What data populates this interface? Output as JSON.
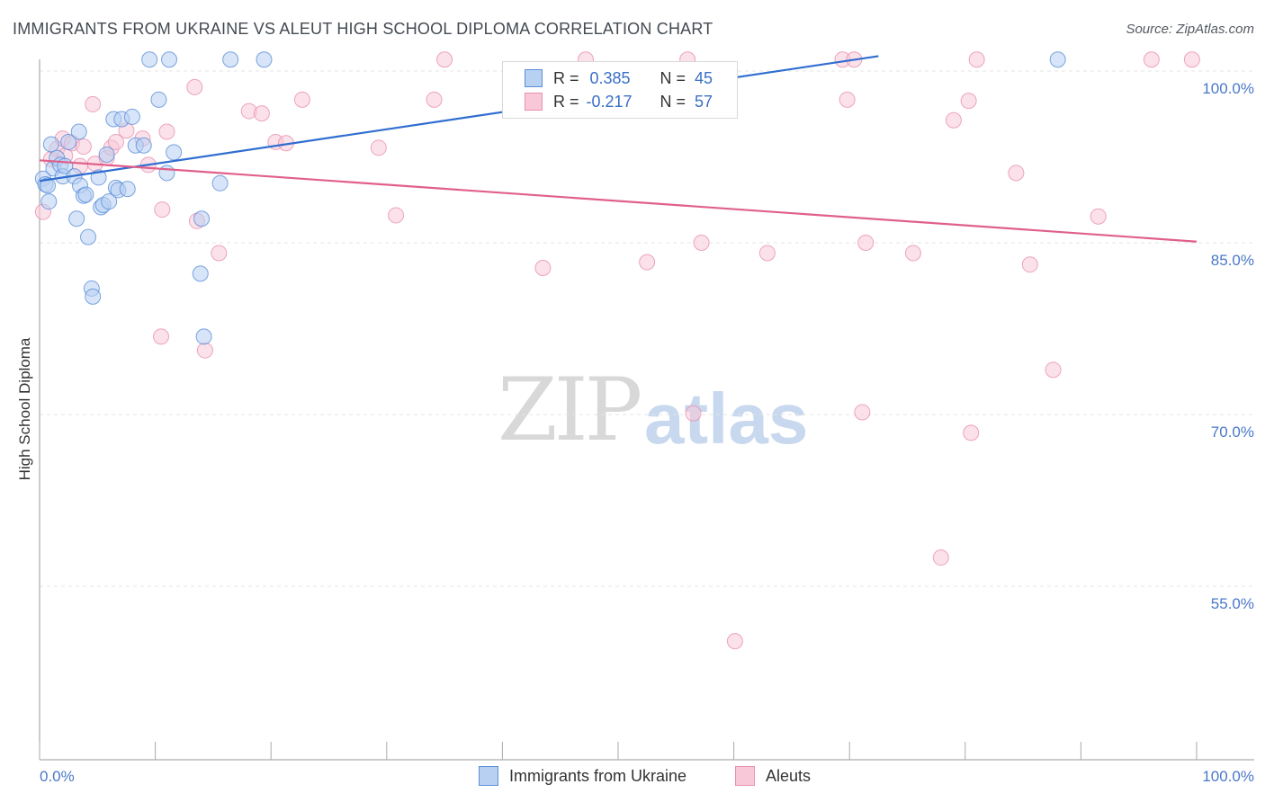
{
  "title": "IMMIGRANTS FROM UKRAINE VS ALEUT HIGH SCHOOL DIPLOMA CORRELATION CHART",
  "source": "Source: ZipAtlas.com",
  "watermark": {
    "zip": "ZIP",
    "atlas": "atlas"
  },
  "legend": {
    "r_label": "R =",
    "n_label": "N =",
    "series1": {
      "r": "0.385",
      "n": "45"
    },
    "series2": {
      "r": "-0.217",
      "n": "57"
    }
  },
  "colors": {
    "blue_fill": "#b8d0f2",
    "blue_stroke": "#5b8fd8",
    "blue_line": "#2f6ed0",
    "pink_fill": "#f8c8d8",
    "pink_stroke": "#e890b0",
    "pink_line": "#e0608a",
    "grid": "#e6e6e6",
    "tick_text": "#4a78c8"
  },
  "chart_data": {
    "type": "scatter",
    "title": "IMMIGRANTS FROM UKRAINE VS ALEUT HIGH SCHOOL DIPLOMA CORRELATION CHART",
    "xlabel": "",
    "ylabel": "High School Diploma",
    "xlim": [
      0,
      100
    ],
    "ylim": [
      40,
      101.5
    ],
    "x_tick_labels": [
      "0.0%",
      "100.0%"
    ],
    "y_ticks": [
      100,
      85,
      70,
      55
    ],
    "y_tick_labels": [
      "100.0%",
      "85.0%",
      "70.0%",
      "55.0%"
    ],
    "legend_position": "bottom",
    "series": [
      {
        "name": "Immigrants from Ukraine",
        "r": 0.385,
        "n": 45,
        "trend": {
          "x0": 0,
          "y0": 90.4,
          "x1": 72.5,
          "y1": 101.3
        },
        "points": [
          [
            0.3,
            90.6
          ],
          [
            0.5,
            90.1
          ],
          [
            0.7,
            90.0
          ],
          [
            0.8,
            88.6
          ],
          [
            1.0,
            93.6
          ],
          [
            1.2,
            91.5
          ],
          [
            1.5,
            92.4
          ],
          [
            1.8,
            91.8
          ],
          [
            2.0,
            90.8
          ],
          [
            2.2,
            91.7
          ],
          [
            2.5,
            93.8
          ],
          [
            3.0,
            90.8
          ],
          [
            3.2,
            87.1
          ],
          [
            3.4,
            94.7
          ],
          [
            3.5,
            90.0
          ],
          [
            3.8,
            89.1
          ],
          [
            4.0,
            89.2
          ],
          [
            4.2,
            85.5
          ],
          [
            4.5,
            81.0
          ],
          [
            4.6,
            80.3
          ],
          [
            5.1,
            90.7
          ],
          [
            5.3,
            88.1
          ],
          [
            5.5,
            88.3
          ],
          [
            5.8,
            92.7
          ],
          [
            6.0,
            88.6
          ],
          [
            6.4,
            95.8
          ],
          [
            6.6,
            89.8
          ],
          [
            6.8,
            89.6
          ],
          [
            7.1,
            95.8
          ],
          [
            7.6,
            89.7
          ],
          [
            8.0,
            96.0
          ],
          [
            8.3,
            93.5
          ],
          [
            9.0,
            93.5
          ],
          [
            9.5,
            101.0
          ],
          [
            10.3,
            97.5
          ],
          [
            11.0,
            91.1
          ],
          [
            11.2,
            101.0
          ],
          [
            11.6,
            92.9
          ],
          [
            13.9,
            82.3
          ],
          [
            14.0,
            87.1
          ],
          [
            14.2,
            76.8
          ],
          [
            15.6,
            90.2
          ],
          [
            16.5,
            101.0
          ],
          [
            19.4,
            101.0
          ],
          [
            88.0,
            101.0
          ]
        ]
      },
      {
        "name": "Aleuts",
        "r": -0.217,
        "n": 57,
        "trend": {
          "x0": 0,
          "y0": 92.2,
          "x1": 100,
          "y1": 85.1
        },
        "points": [
          [
            0.3,
            87.7
          ],
          [
            1.0,
            92.3
          ],
          [
            1.5,
            93.2
          ],
          [
            2.0,
            94.1
          ],
          [
            2.2,
            92.6
          ],
          [
            2.8,
            93.7
          ],
          [
            3.5,
            91.7
          ],
          [
            3.8,
            93.4
          ],
          [
            4.6,
            97.1
          ],
          [
            4.8,
            91.9
          ],
          [
            5.8,
            92.4
          ],
          [
            6.2,
            93.3
          ],
          [
            6.6,
            93.8
          ],
          [
            7.5,
            94.8
          ],
          [
            8.9,
            94.1
          ],
          [
            9.4,
            91.8
          ],
          [
            10.5,
            76.8
          ],
          [
            10.6,
            87.9
          ],
          [
            11.0,
            94.7
          ],
          [
            13.4,
            98.6
          ],
          [
            13.6,
            86.9
          ],
          [
            14.3,
            75.6
          ],
          [
            15.5,
            84.1
          ],
          [
            18.1,
            96.5
          ],
          [
            19.2,
            96.3
          ],
          [
            20.4,
            93.8
          ],
          [
            21.3,
            93.7
          ],
          [
            22.7,
            97.5
          ],
          [
            29.3,
            93.3
          ],
          [
            30.8,
            87.4
          ],
          [
            34.1,
            97.5
          ],
          [
            35.0,
            101.0
          ],
          [
            43.5,
            82.8
          ],
          [
            47.2,
            101.0
          ],
          [
            52.5,
            83.3
          ],
          [
            56.0,
            101.0
          ],
          [
            56.5,
            70.1
          ],
          [
            57.2,
            85.0
          ],
          [
            60.1,
            50.2
          ],
          [
            62.9,
            84.1
          ],
          [
            69.4,
            101.0
          ],
          [
            69.8,
            97.5
          ],
          [
            70.4,
            101.0
          ],
          [
            71.1,
            70.2
          ],
          [
            71.4,
            85.0
          ],
          [
            75.5,
            84.1
          ],
          [
            77.9,
            57.5
          ],
          [
            79.0,
            95.7
          ],
          [
            80.3,
            97.4
          ],
          [
            80.5,
            68.4
          ],
          [
            81.0,
            101.0
          ],
          [
            84.4,
            91.1
          ],
          [
            85.6,
            83.1
          ],
          [
            87.6,
            73.9
          ],
          [
            91.5,
            87.3
          ],
          [
            96.1,
            101.0
          ],
          [
            99.6,
            101.0
          ]
        ]
      }
    ]
  },
  "bottom_legend": {
    "item1": "Immigrants from Ukraine",
    "item2": "Aleuts"
  }
}
